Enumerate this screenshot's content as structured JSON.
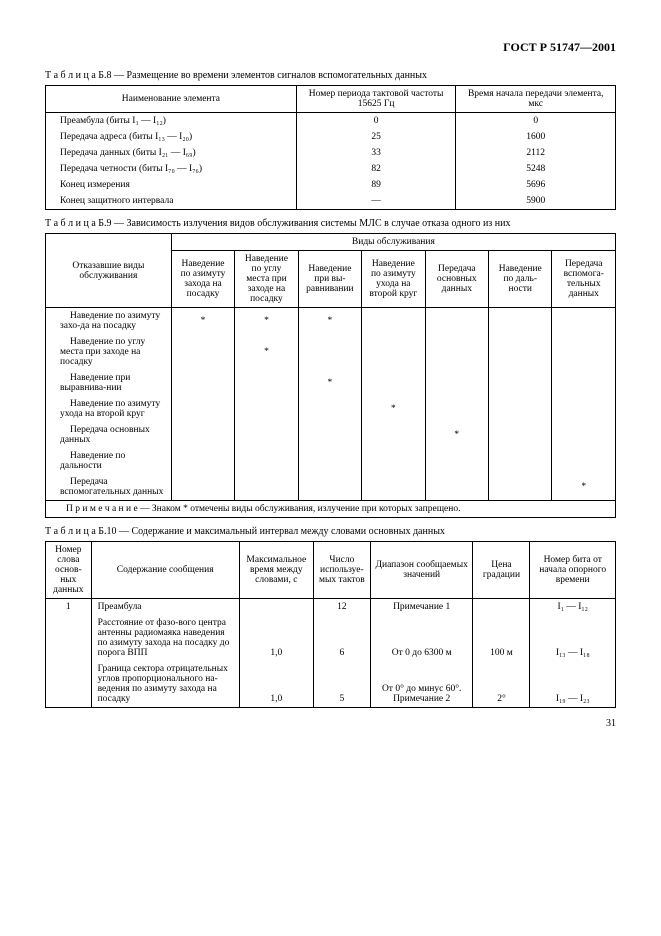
{
  "header": "ГОСТ Р 51747—2001",
  "page_number": "31",
  "t8": {
    "caption_prefix": "Т а б л и ц а  Б.8",
    "caption": " — Размещение во времени элементов сигналов вспомогательных данных",
    "headers": [
      "Наименование элемента",
      "Номер периода тактовой частоты 15625 Гц",
      "Время начала передачи элемента, мкс"
    ],
    "rows": [
      [
        "Преамбула (биты I₁ — I₁₂)",
        "0",
        "0"
      ],
      [
        "Передача адреса (биты I₁₃ — I₂₀)",
        "25",
        "1600"
      ],
      [
        "Передача данных (биты I₂₁ — I₆₉)",
        "33",
        "2112"
      ],
      [
        "Передача четности (биты I₇₀ — I₇₆)",
        "82",
        "5248"
      ],
      [
        "Конец измерения",
        "89",
        "5696"
      ],
      [
        "Конец защитного интервала",
        "—",
        "5900"
      ]
    ]
  },
  "t9": {
    "caption_prefix": "Т а б л и ц а  Б.9",
    "caption": " — Зависимость излучения видов обслуживания системы МЛС в случае отказа одного из них",
    "super_header": "Виды обслуживания",
    "row_header": "Отказавшие виды обслуживания",
    "cols": [
      "Наведение по азимуту захода на посадку",
      "Наведение по углу места при заходе на посадку",
      "Наведение при вы-равнивании",
      "Наведение по азимуту ухода на второй круг",
      "Передача основных данных",
      "Наведение по даль-ности",
      "Передача вспомога-тельных данных"
    ],
    "rows": [
      {
        "label": "Наведение по азимуту захо-да на посадку",
        "marks": [
          "*",
          "*",
          "*",
          "",
          "",
          "",
          ""
        ]
      },
      {
        "label": "Наведение по углу места при заходе на посадку",
        "marks": [
          "",
          "*",
          "",
          "",
          "",
          "",
          ""
        ]
      },
      {
        "label": "Наведение при выравнива-нии",
        "marks": [
          "",
          "",
          "*",
          "",
          "",
          "",
          ""
        ]
      },
      {
        "label": "Наведение по азимуту ухода на второй круг",
        "marks": [
          "",
          "",
          "",
          "*",
          "",
          "",
          ""
        ]
      },
      {
        "label": "Передача основных данных",
        "marks": [
          "",
          "",
          "",
          "",
          "*",
          "",
          ""
        ]
      },
      {
        "label": "Наведение по дальности",
        "marks": [
          "",
          "",
          "",
          "",
          "",
          "",
          ""
        ]
      },
      {
        "label": "Передача вспомогательных данных",
        "marks": [
          "",
          "",
          "",
          "",
          "",
          "",
          "*"
        ]
      }
    ],
    "note": "П р и м е ч а н и е — Знаком * отмечены виды обслуживания, излучение при которых запрещено."
  },
  "t10": {
    "caption_prefix": "Т а б л и ц а  Б.10",
    "caption": " — Содержание и максимальный интервал между словами основных данных",
    "headers": [
      "Номер слова основ-ных данных",
      "Содержание сообщения",
      "Максимальное время между словами, с",
      "Число используе-мых тактов",
      "Диапазон сообщаемых значений",
      "Цена градации",
      "Номер бита от начала опорного времени"
    ],
    "rows": [
      [
        "1",
        "Преамбула",
        "",
        "12",
        "Примечание 1",
        "",
        "I₁ — I₁₂"
      ],
      [
        "",
        "Расстояние от фазо-вого центра антенны радиомаяка наведения по азимуту захода на посадку до порога ВПП",
        "1,0",
        "6",
        "От 0 до 6300 м",
        "100 м",
        "I₁₃ — I₁₈"
      ],
      [
        "",
        "Граница сектора отрицательных углов пропорционального на-ведения по азимуту захода на посадку",
        "1,0",
        "5",
        "От 0° до минус 60°. Примечание 2",
        "2°",
        "I₁₉ — I₂₃"
      ]
    ]
  }
}
